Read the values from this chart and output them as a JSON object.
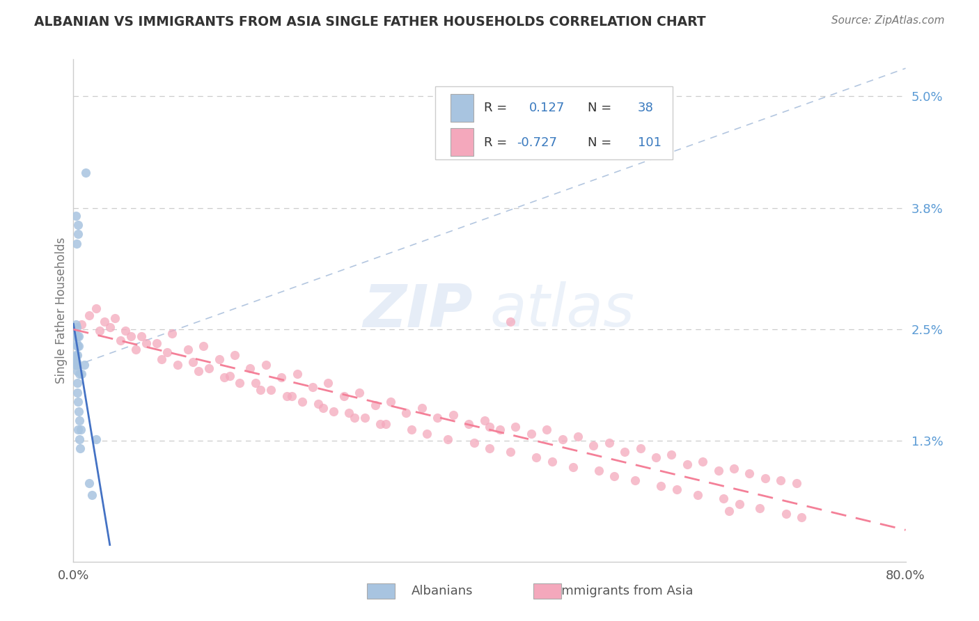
{
  "title": "ALBANIAN VS IMMIGRANTS FROM ASIA SINGLE FATHER HOUSEHOLDS CORRELATION CHART",
  "source_text": "Source: ZipAtlas.com",
  "ylabel": "Single Father Households",
  "R1": 0.127,
  "N1": 38,
  "R2": -0.727,
  "N2": 101,
  "color1": "#a8c4e0",
  "color2": "#f4a8bc",
  "trendline1_color": "#4472c4",
  "trendline2_color": "#f48098",
  "xlim": [
    0.0,
    80.0
  ],
  "ylim": [
    0.0,
    5.4
  ],
  "yticks": [
    1.3,
    2.5,
    3.8,
    5.0
  ],
  "ytick_labels": [
    "1.3%",
    "2.5%",
    "3.8%",
    "5.0%"
  ],
  "background_color": "#ffffff",
  "grid_color": "#cccccc",
  "watermark_line1": "ZIP",
  "watermark_line2": "atlas",
  "albanians_x": [
    0.08,
    1.15,
    0.18,
    0.22,
    0.28,
    0.32,
    0.35,
    0.38,
    0.42,
    0.45,
    0.25,
    0.3,
    0.28,
    0.35,
    0.25,
    0.22,
    0.3,
    0.32,
    0.38,
    0.4,
    0.45,
    0.5,
    0.55,
    0.6,
    0.3,
    0.35,
    0.4,
    0.42,
    0.48,
    0.52,
    0.58,
    0.65,
    0.72,
    0.8,
    1.05,
    1.8,
    2.2,
    1.5
  ],
  "albanians_y": [
    2.2,
    4.18,
    2.45,
    2.55,
    2.35,
    2.15,
    2.05,
    2.22,
    3.52,
    3.62,
    3.72,
    3.42,
    2.42,
    2.32,
    2.12,
    2.22,
    2.52,
    2.42,
    1.82,
    1.92,
    1.72,
    1.62,
    1.52,
    2.02,
    2.12,
    2.32,
    2.42,
    1.42,
    2.42,
    2.32,
    1.32,
    1.22,
    1.42,
    2.02,
    2.12,
    0.72,
    1.32,
    0.85
  ],
  "asia_x": [
    0.8,
    1.5,
    2.2,
    3.0,
    4.0,
    5.0,
    6.5,
    8.0,
    9.5,
    11.0,
    12.5,
    14.0,
    15.5,
    17.0,
    18.5,
    20.0,
    21.5,
    23.0,
    24.5,
    26.0,
    27.5,
    29.0,
    30.5,
    32.0,
    33.5,
    35.0,
    36.5,
    38.0,
    39.5,
    41.0,
    42.5,
    44.0,
    45.5,
    47.0,
    48.5,
    50.0,
    51.5,
    53.0,
    54.5,
    56.0,
    57.5,
    59.0,
    60.5,
    62.0,
    63.5,
    65.0,
    66.5,
    68.0,
    69.5,
    42.0,
    2.5,
    4.5,
    6.0,
    8.5,
    10.0,
    12.0,
    14.5,
    16.0,
    18.0,
    20.5,
    22.0,
    24.0,
    26.5,
    28.0,
    30.0,
    32.5,
    34.0,
    36.0,
    38.5,
    40.0,
    42.0,
    44.5,
    46.0,
    48.0,
    50.5,
    52.0,
    54.0,
    56.5,
    58.0,
    60.0,
    62.5,
    64.0,
    66.0,
    68.5,
    70.0,
    3.5,
    5.5,
    7.0,
    9.0,
    11.5,
    13.0,
    15.0,
    17.5,
    19.0,
    21.0,
    23.5,
    25.0,
    27.0,
    29.5,
    63.0,
    40.0
  ],
  "asia_y": [
    2.55,
    2.65,
    2.72,
    2.58,
    2.62,
    2.48,
    2.42,
    2.35,
    2.45,
    2.28,
    2.32,
    2.18,
    2.22,
    2.08,
    2.12,
    1.98,
    2.02,
    1.88,
    1.92,
    1.78,
    1.82,
    1.68,
    1.72,
    1.6,
    1.65,
    1.55,
    1.58,
    1.48,
    1.52,
    1.42,
    1.45,
    1.38,
    1.42,
    1.32,
    1.35,
    1.25,
    1.28,
    1.18,
    1.22,
    1.12,
    1.15,
    1.05,
    1.08,
    0.98,
    1.0,
    0.95,
    0.9,
    0.88,
    0.85,
    2.58,
    2.48,
    2.38,
    2.28,
    2.18,
    2.12,
    2.05,
    1.98,
    1.92,
    1.85,
    1.78,
    1.72,
    1.65,
    1.6,
    1.55,
    1.48,
    1.42,
    1.38,
    1.32,
    1.28,
    1.22,
    1.18,
    1.12,
    1.08,
    1.02,
    0.98,
    0.92,
    0.88,
    0.82,
    0.78,
    0.72,
    0.68,
    0.62,
    0.58,
    0.52,
    0.48,
    2.52,
    2.42,
    2.35,
    2.25,
    2.15,
    2.08,
    2.0,
    1.92,
    1.85,
    1.78,
    1.7,
    1.62,
    1.55,
    1.48,
    0.55,
    1.45
  ]
}
